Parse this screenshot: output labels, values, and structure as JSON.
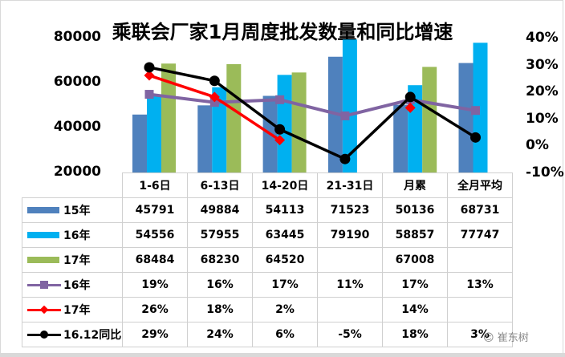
{
  "chart_data": {
    "type": "bar",
    "title": "乘联会厂家1月周度批发数量和同比增速",
    "categories": [
      "1-6日",
      "6-13日",
      "14-20日",
      "21-31日",
      "月累",
      "全月平均"
    ],
    "left_axis": {
      "ticks": [
        "80000",
        "60000",
        "40000",
        "20000"
      ],
      "ylim": [
        20000,
        80000
      ]
    },
    "right_axis": {
      "ticks": [
        "40%",
        "30%",
        "20%",
        "10%",
        "0%",
        "-10%"
      ],
      "ylim": [
        -0.1,
        0.4
      ]
    },
    "series": [
      {
        "name": "15年",
        "type": "bar",
        "axis": "left",
        "color": "#4F81BD",
        "values": [
          45791,
          49884,
          54113,
          71523,
          50136,
          68731
        ]
      },
      {
        "name": "16年",
        "type": "bar",
        "axis": "left",
        "color": "#00B0F0",
        "values": [
          54556,
          57955,
          63445,
          79190,
          58857,
          77747
        ]
      },
      {
        "name": "17年",
        "type": "bar",
        "axis": "left",
        "color": "#9BBB59",
        "values": [
          68484,
          68230,
          64520,
          null,
          67008,
          null
        ]
      },
      {
        "name": "16年",
        "type": "line",
        "axis": "right",
        "color": "#8064A2",
        "marker": "square",
        "values": [
          0.19,
          0.16,
          0.17,
          0.11,
          0.17,
          0.13
        ]
      },
      {
        "name": "17年",
        "type": "line",
        "axis": "right",
        "color": "#FF0000",
        "marker": "diamond",
        "values": [
          0.26,
          0.18,
          0.02,
          null,
          0.14,
          null
        ]
      },
      {
        "name": "16.12同比",
        "type": "line",
        "axis": "right",
        "color": "#000000",
        "marker": "circle",
        "values": [
          0.29,
          0.24,
          0.06,
          -0.05,
          0.18,
          0.03
        ]
      }
    ],
    "legend_position": "data-table",
    "grid": false
  },
  "table": {
    "headers": [
      "1-6日",
      "6-13日",
      "14-20日",
      "21-31日",
      "月累",
      "全月平均"
    ],
    "rows": [
      {
        "label": "15年",
        "key": "bar",
        "color": "#4F81BD",
        "cells": [
          "45791",
          "49884",
          "54113",
          "71523",
          "50136",
          "68731"
        ]
      },
      {
        "label": "16年",
        "key": "bar",
        "color": "#00B0F0",
        "cells": [
          "54556",
          "57955",
          "63445",
          "79190",
          "58857",
          "77747"
        ]
      },
      {
        "label": "17年",
        "key": "bar",
        "color": "#9BBB59",
        "cells": [
          "68484",
          "68230",
          "64520",
          "",
          "67008",
          ""
        ]
      },
      {
        "label": "16年",
        "key": "line-square",
        "color": "#8064A2",
        "cells": [
          "19%",
          "16%",
          "17%",
          "11%",
          "17%",
          "13%"
        ]
      },
      {
        "label": "17年",
        "key": "line-diamond",
        "color": "#FF0000",
        "cells": [
          "26%",
          "18%",
          "2%",
          "",
          "14%",
          ""
        ]
      },
      {
        "label": "16.12同比",
        "key": "line-circle",
        "color": "#000000",
        "cells": [
          "29%",
          "24%",
          "6%",
          "-5%",
          "18%",
          "3%"
        ]
      }
    ]
  },
  "watermark": "崔东树"
}
